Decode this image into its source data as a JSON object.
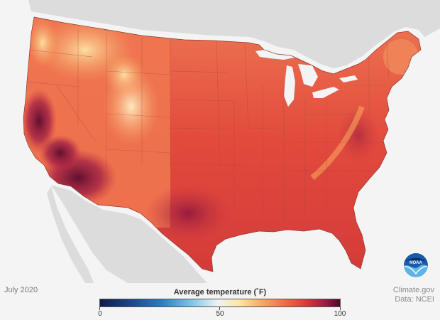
{
  "map": {
    "region": "contiguous United States",
    "variable": "Average temperature",
    "period_label": "July 2020",
    "colors": {
      "ocean_land_background": "#f4f4f4",
      "neighbor_land": "#dcdcdc",
      "state_borders": "#a04a3a",
      "hot_core": "#6e1033",
      "warm": "#e8553f",
      "mild": "#f6a35e"
    }
  },
  "legend": {
    "title": "Average temperature (˚F)",
    "min_label": "0",
    "mid_label": "50",
    "max_label": "100",
    "range": [
      0,
      100
    ]
  },
  "credits": {
    "source_line1": "Climate.gov",
    "source_line2": "Data: NCEI"
  },
  "logo": {
    "text": "NOAA",
    "icon": "noaa-logo-icon"
  }
}
